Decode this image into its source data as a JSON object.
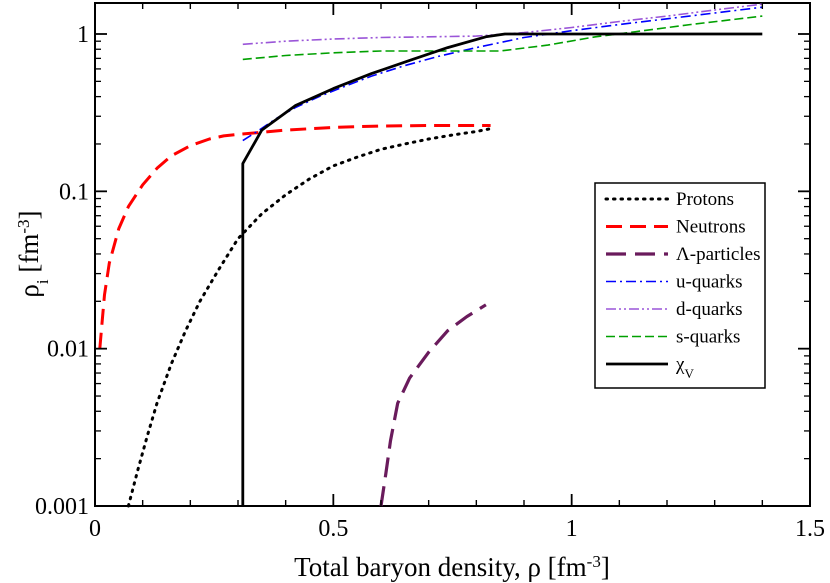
{
  "chart_data": {
    "type": "line",
    "title": "",
    "xlabel": "Total baryon density, ρ [fm",
    "xlabel_sup": "-3",
    "xlabel_close": "]",
    "ylabel": "ρ",
    "ylabel_sub": "i",
    "ylabel_unit": " [fm",
    "ylabel_sup": "-3",
    "ylabel_close": "]",
    "xlim": [
      0,
      1.5
    ],
    "ylim": [
      0.001,
      1.6
    ],
    "yscale": "log",
    "grid": false,
    "legend_position": "right",
    "xticks": [
      0,
      0.5,
      1,
      1.5
    ],
    "xtick_labels": [
      "0",
      "0.5",
      "1",
      "1.5"
    ],
    "yticks": [
      0.001,
      0.01,
      0.1,
      1
    ],
    "ytick_labels": [
      "0.001",
      "0.01",
      "0.1",
      "1"
    ],
    "series": [
      {
        "name": "Protons",
        "color": "#000000",
        "dash": "dotted",
        "x": [
          0.07,
          0.09,
          0.11,
          0.13,
          0.16,
          0.19,
          0.22,
          0.26,
          0.3,
          0.35,
          0.4,
          0.45,
          0.5,
          0.55,
          0.6,
          0.65,
          0.7,
          0.75,
          0.8,
          0.83
        ],
        "y": [
          0.001,
          0.0017,
          0.0028,
          0.0045,
          0.008,
          0.013,
          0.02,
          0.032,
          0.05,
          0.072,
          0.095,
          0.12,
          0.145,
          0.165,
          0.185,
          0.2,
          0.215,
          0.228,
          0.24,
          0.25
        ]
      },
      {
        "name": "Neutrons",
        "color": "#ff0000",
        "dash": "dashed",
        "x": [
          0.01,
          0.015,
          0.02,
          0.03,
          0.05,
          0.07,
          0.1,
          0.13,
          0.16,
          0.2,
          0.24,
          0.27,
          0.3,
          0.4,
          0.5,
          0.6,
          0.7,
          0.83
        ],
        "y": [
          0.01,
          0.015,
          0.022,
          0.035,
          0.058,
          0.08,
          0.11,
          0.14,
          0.168,
          0.195,
          0.215,
          0.225,
          0.23,
          0.245,
          0.255,
          0.26,
          0.262,
          0.262
        ]
      },
      {
        "name": "Λ-particles",
        "color": "#6a1b5c",
        "dash": "longdash",
        "x": [
          0.6,
          0.61,
          0.62,
          0.635,
          0.66,
          0.7,
          0.74,
          0.78,
          0.82
        ],
        "y": [
          0.001,
          0.0016,
          0.0026,
          0.0045,
          0.0065,
          0.0095,
          0.013,
          0.016,
          0.019
        ]
      },
      {
        "name": "u-quarks",
        "color": "#0000ff",
        "dash": "dashdot",
        "x": [
          0.31,
          0.34,
          0.38,
          0.42,
          0.47,
          0.52,
          0.58,
          0.65,
          0.72,
          0.8,
          0.9,
          1.0,
          1.1,
          1.2,
          1.3,
          1.4
        ],
        "y": [
          0.21,
          0.24,
          0.29,
          0.34,
          0.4,
          0.46,
          0.54,
          0.63,
          0.72,
          0.82,
          0.95,
          1.05,
          1.15,
          1.25,
          1.36,
          1.48
        ]
      },
      {
        "name": "d-quarks",
        "color": "#9a55d8",
        "dash": "dashdotdot",
        "x": [
          0.31,
          0.4,
          0.5,
          0.6,
          0.7,
          0.8,
          0.9,
          1.0,
          1.1,
          1.2,
          1.3,
          1.4
        ],
        "y": [
          0.86,
          0.9,
          0.93,
          0.95,
          0.96,
          0.97,
          1.02,
          1.1,
          1.2,
          1.3,
          1.42,
          1.55
        ]
      },
      {
        "name": "s-quarks",
        "color": "#00a000",
        "dash": "dashed-short",
        "x": [
          0.31,
          0.4,
          0.5,
          0.6,
          0.7,
          0.85,
          0.95,
          1.05,
          1.15,
          1.25,
          1.4
        ],
        "y": [
          0.69,
          0.73,
          0.76,
          0.78,
          0.78,
          0.78,
          0.85,
          0.96,
          1.05,
          1.15,
          1.3
        ]
      },
      {
        "name": "χ",
        "name_sub": "V",
        "color": "#000000",
        "dash": "solid",
        "x": [
          0.31,
          0.31,
          0.35,
          0.42,
          0.5,
          0.58,
          0.66,
          0.74,
          0.82,
          0.86,
          1.0,
          1.2,
          1.4
        ],
        "y": [
          0.001,
          0.15,
          0.245,
          0.35,
          0.45,
          0.56,
          0.68,
          0.82,
          0.96,
          1.0,
          1.0,
          1.0,
          1.0
        ]
      }
    ]
  }
}
